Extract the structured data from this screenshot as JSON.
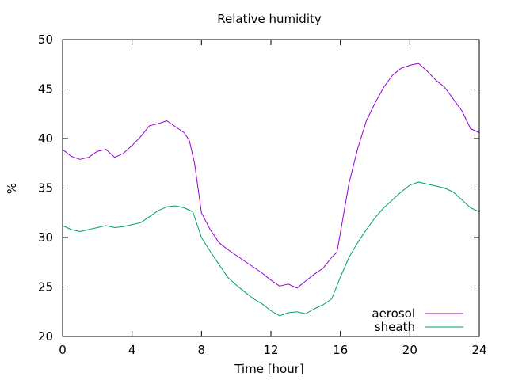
{
  "chart_data": {
    "type": "line",
    "title": "Relative humidity",
    "xlabel": "Time [hour]",
    "ylabel": "%",
    "xlim": [
      0,
      24
    ],
    "ylim": [
      20,
      50
    ],
    "xticks": [
      0,
      4,
      8,
      12,
      16,
      20,
      24
    ],
    "yticks": [
      20,
      25,
      30,
      35,
      40,
      45,
      50
    ],
    "legend_position": "bottom-right",
    "grid": false,
    "series": [
      {
        "name": "aerosol",
        "color": "#9400d3",
        "x": [
          0,
          0.5,
          1,
          1.5,
          2,
          2.5,
          3,
          3.5,
          4,
          4.5,
          5,
          5.5,
          6,
          6.5,
          7,
          7.3,
          7.6,
          8,
          8.5,
          9,
          9.5,
          10,
          10.5,
          11,
          11.5,
          12,
          12.5,
          13,
          13.5,
          14,
          14.5,
          15,
          15.5,
          15.8,
          16,
          16.5,
          17,
          17.5,
          18,
          18.5,
          19,
          19.5,
          20,
          20.5,
          21,
          21.5,
          22,
          22.5,
          23,
          23.5,
          24
        ],
        "y": [
          38.9,
          38.2,
          37.9,
          38.1,
          38.7,
          38.9,
          38.1,
          38.5,
          39.3,
          40.2,
          41.3,
          41.5,
          41.8,
          41.2,
          40.6,
          39.8,
          37.5,
          32.5,
          30.8,
          29.5,
          28.8,
          28.2,
          27.6,
          27.0,
          26.4,
          25.7,
          25.1,
          25.3,
          24.9,
          25.6,
          26.3,
          26.9,
          28.0,
          28.5,
          30.5,
          35.5,
          39.0,
          41.8,
          43.6,
          45.2,
          46.4,
          47.1,
          47.4,
          47.6,
          46.8,
          45.9,
          45.2,
          44.0,
          42.8,
          41.0,
          40.6
        ]
      },
      {
        "name": "sheath",
        "color": "#009e73",
        "x": [
          0,
          0.5,
          1,
          1.5,
          2,
          2.5,
          3,
          3.5,
          4,
          4.5,
          5,
          5.5,
          6,
          6.5,
          7,
          7.5,
          8,
          8.5,
          9,
          9.5,
          10,
          10.5,
          11,
          11.5,
          12,
          12.5,
          13,
          13.5,
          14,
          14.5,
          15,
          15.5,
          16,
          16.5,
          17,
          17.5,
          18,
          18.5,
          19,
          19.5,
          20,
          20.5,
          21,
          21.5,
          22,
          22.5,
          23,
          23.5,
          24
        ],
        "y": [
          31.2,
          30.8,
          30.6,
          30.8,
          31.0,
          31.2,
          31.0,
          31.1,
          31.3,
          31.5,
          32.1,
          32.7,
          33.1,
          33.2,
          33.0,
          32.6,
          30.0,
          28.6,
          27.3,
          26.0,
          25.2,
          24.5,
          23.8,
          23.3,
          22.6,
          22.1,
          22.4,
          22.5,
          22.3,
          22.8,
          23.2,
          23.8,
          26.0,
          28.0,
          29.5,
          30.8,
          32.0,
          33.0,
          33.8,
          34.6,
          35.3,
          35.6,
          35.4,
          35.2,
          35.0,
          34.6,
          33.8,
          33.0,
          32.6
        ]
      }
    ]
  }
}
